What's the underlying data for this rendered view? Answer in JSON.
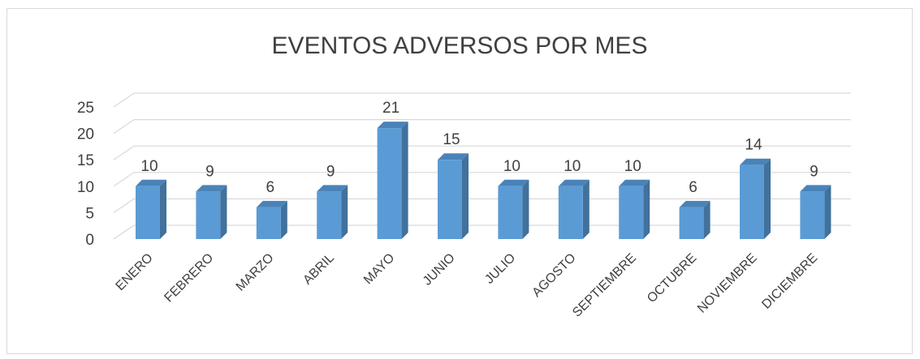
{
  "chart_data": {
    "type": "bar3d",
    "title": "EVENTOS ADVERSOS POR MES",
    "categories": [
      "ENERO",
      "FEBRERO",
      "MARZO",
      "ABRIL",
      "MAYO",
      "JUNIO",
      "JULIO",
      "AGOSTO",
      "SEPTIEMBRE",
      "OCTUBRE",
      "NOVIEMBRE",
      "DICIEMBRE"
    ],
    "values": [
      10,
      9,
      6,
      9,
      21,
      15,
      10,
      10,
      10,
      6,
      14,
      9
    ],
    "color": "#5b9bd5",
    "ylim": [
      0,
      25
    ],
    "yticks": [
      0,
      5,
      10,
      15,
      20,
      25
    ],
    "grid": true
  }
}
